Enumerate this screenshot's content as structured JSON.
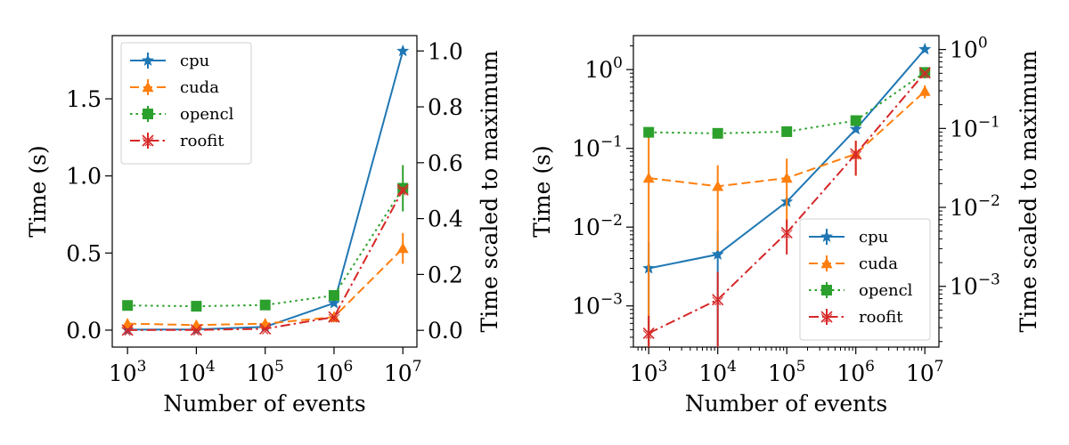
{
  "chart_data": [
    {
      "type": "line",
      "xscale": "log",
      "yscale": "linear",
      "xlabel": "Number of events",
      "ylabel": "Time (s)",
      "ylabel_right": "Time scaled to maximum",
      "x": [
        1000,
        10000,
        100000,
        1000000,
        10000000
      ],
      "xticks": [
        {
          "value": 1000,
          "base": "10",
          "exp": "3"
        },
        {
          "value": 10000,
          "base": "10",
          "exp": "4"
        },
        {
          "value": 100000,
          "base": "10",
          "exp": "5"
        },
        {
          "value": 1000000,
          "base": "10",
          "exp": "6"
        },
        {
          "value": 10000000,
          "base": "10",
          "exp": "7"
        }
      ],
      "xlim": [
        600,
        16000000
      ],
      "ylim": [
        -0.11,
        1.91
      ],
      "yticks": [
        {
          "value": 0,
          "label": "0.0"
        },
        {
          "value": 0.5,
          "label": "0.5"
        },
        {
          "value": 1.0,
          "label": "1.0"
        },
        {
          "value": 1.5,
          "label": "1.5"
        }
      ],
      "ylim_right": [
        -0.06,
        1.055
      ],
      "yticks_right": [
        {
          "value": 0,
          "label": "0.0"
        },
        {
          "value": 0.2,
          "label": "0.2"
        },
        {
          "value": 0.4,
          "label": "0.4"
        },
        {
          "value": 0.6,
          "label": "0.6"
        },
        {
          "value": 0.8,
          "label": "0.8"
        },
        {
          "value": 1.0,
          "label": "1.0"
        }
      ],
      "legend": {
        "location": "upper left"
      },
      "series": [
        {
          "name": "cpu",
          "color": "#1f77b4",
          "linestyle": "solid",
          "marker": "star",
          "values": [
            0.003,
            0.0045,
            0.021,
            0.175,
            1.81
          ],
          "errors": [
            0.004,
            0.004,
            0.004,
            0.006,
            0.01
          ]
        },
        {
          "name": "cuda",
          "color": "#ff7f0e",
          "linestyle": "dashed",
          "marker": "triangle",
          "values": [
            0.042,
            0.033,
            0.042,
            0.085,
            0.53
          ],
          "errors": [
            0.03,
            0.03,
            0.03,
            0.035,
            0.1
          ]
        },
        {
          "name": "opencl",
          "color": "#2ca02c",
          "linestyle": "dotted",
          "marker": "square",
          "values": [
            0.16,
            0.155,
            0.163,
            0.225,
            0.92
          ],
          "errors": [
            0.025,
            0.015,
            0.015,
            0.03,
            0.15
          ]
        },
        {
          "name": "roofit",
          "color": "#d62728",
          "linestyle": "dashdot",
          "marker": "x",
          "values": [
            0.00045,
            0.0012,
            0.0085,
            0.085,
            0.91
          ],
          "errors": [
            0.003,
            0.003,
            0.004,
            0.006,
            0.02
          ]
        }
      ]
    },
    {
      "type": "line",
      "xscale": "log",
      "yscale": "log",
      "xlabel": "Number of events",
      "ylabel": "Time (s)",
      "ylabel_right": "Time scaled to maximum",
      "x": [
        1000,
        10000,
        100000,
        1000000,
        10000000
      ],
      "xticks": [
        {
          "value": 1000,
          "base": "10",
          "exp": "3"
        },
        {
          "value": 10000,
          "base": "10",
          "exp": "4"
        },
        {
          "value": 100000,
          "base": "10",
          "exp": "5"
        },
        {
          "value": 1000000,
          "base": "10",
          "exp": "6"
        },
        {
          "value": 10000000,
          "base": "10",
          "exp": "7"
        }
      ],
      "xlim": [
        600,
        16000000
      ],
      "ylim": [
        0.0003,
        2.7
      ],
      "yticks": [
        {
          "value": 0.001,
          "base": "10",
          "exp": "−3"
        },
        {
          "value": 0.01,
          "base": "10",
          "exp": "−2"
        },
        {
          "value": 0.1,
          "base": "10",
          "exp": "−1"
        },
        {
          "value": 1,
          "base": "10",
          "exp": "0"
        }
      ],
      "ylim_right": [
        0.00017,
        1.5
      ],
      "yticks_right": [
        {
          "value": 0.001,
          "base": "10",
          "exp": "−3"
        },
        {
          "value": 0.01,
          "base": "10",
          "exp": "−2"
        },
        {
          "value": 0.1,
          "base": "10",
          "exp": "−1"
        },
        {
          "value": 1,
          "base": "10",
          "exp": "0"
        }
      ],
      "legend": {
        "location": "lower right"
      },
      "series": [
        {
          "name": "cpu",
          "color": "#1f77b4",
          "linestyle": "solid",
          "marker": "star",
          "values": [
            0.003,
            0.0045,
            0.021,
            0.175,
            1.81
          ],
          "errors": [
            0.0035,
            0.0045,
            0.002,
            0.006,
            0.01
          ]
        },
        {
          "name": "cuda",
          "color": "#ff7f0e",
          "linestyle": "dashed",
          "marker": "triangle",
          "values": [
            0.042,
            0.033,
            0.042,
            0.085,
            0.53
          ],
          "errors": [
            0.1,
            0.028,
            0.032,
            0.04,
            0.1
          ]
        },
        {
          "name": "opencl",
          "color": "#2ca02c",
          "linestyle": "dotted",
          "marker": "square",
          "values": [
            0.16,
            0.155,
            0.163,
            0.225,
            0.92
          ],
          "errors": [
            0.025,
            0.015,
            0.015,
            0.03,
            0.15
          ]
        },
        {
          "name": "roofit",
          "color": "#d62728",
          "linestyle": "dashdot",
          "marker": "x",
          "values": [
            0.00045,
            0.0012,
            0.0085,
            0.085,
            0.91
          ],
          "errors": [
            0.0003,
            0.0015,
            0.004,
            0.04,
            0.02
          ]
        }
      ]
    }
  ]
}
